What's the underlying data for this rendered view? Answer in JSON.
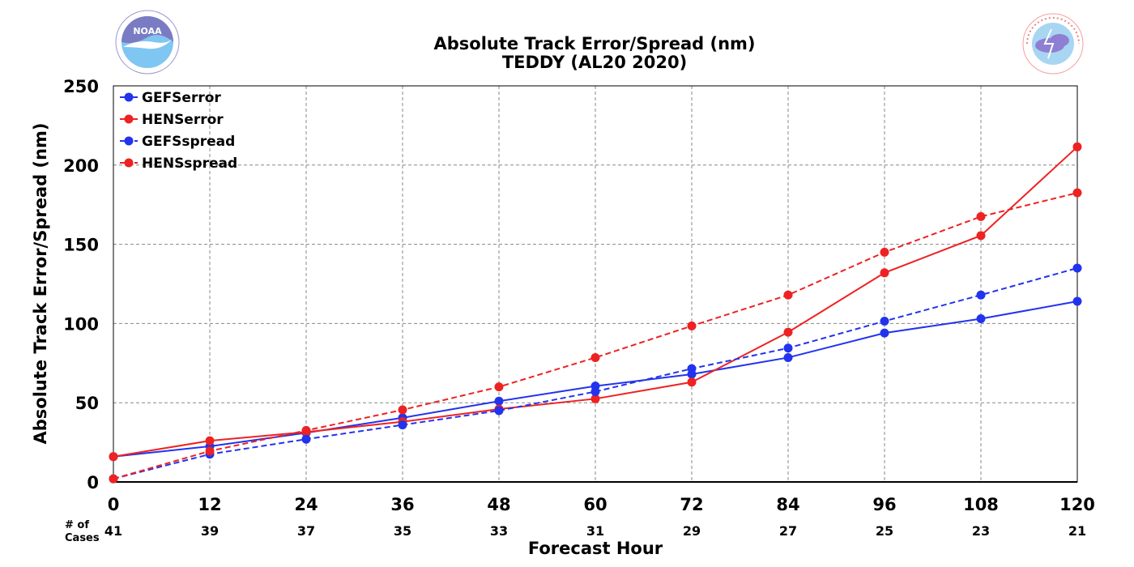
{
  "logos": {
    "left": {
      "name": "noaa-logo",
      "text": "NOAA",
      "ring_text": "NATIONAL OCEANIC AND ATMOSPHERIC ADMINISTRATION · U.S. DEPARTMENT OF COMMERCE"
    },
    "right": {
      "name": "nws-logo",
      "ring_text": "NATIONAL WEATHER SERVICE"
    }
  },
  "chart_data": {
    "type": "line",
    "title": "Absolute Track Error/Spread (nm)",
    "subtitle": "TEDDY (AL20 2020)",
    "xlabel": "Forecast Hour",
    "ylabel": "Absolute Track Error/Spread (nm)",
    "x": [
      0,
      12,
      24,
      36,
      48,
      60,
      72,
      84,
      96,
      108,
      120
    ],
    "xlim": [
      0,
      120
    ],
    "ylim": [
      0,
      250
    ],
    "yticks": [
      0,
      50,
      100,
      150,
      200,
      250
    ],
    "grid": true,
    "legend_position": "top-left",
    "cases_label": "# of\nCases",
    "cases": [
      41,
      39,
      37,
      35,
      33,
      31,
      29,
      27,
      25,
      23,
      21
    ],
    "series": [
      {
        "name": "GEFSerror",
        "color": "#2233ee",
        "dash": false,
        "values": [
          16,
          22.5,
          31,
          40.5,
          51,
          60.5,
          68,
          78.5,
          94,
          103,
          114
        ]
      },
      {
        "name": "HENSerror",
        "color": "#ee2222",
        "dash": false,
        "values": [
          16,
          26,
          31.5,
          38,
          46,
          52.5,
          63,
          94.5,
          132,
          155.5,
          211.5
        ]
      },
      {
        "name": "GEFSspread",
        "color": "#2233ee",
        "dash": true,
        "values": [
          2,
          17.5,
          27,
          36,
          45,
          57,
          71.5,
          84.5,
          101.5,
          118,
          135
        ]
      },
      {
        "name": "HENSspread",
        "color": "#ee2222",
        "dash": true,
        "values": [
          2,
          19.5,
          32.5,
          45.5,
          60,
          78.5,
          98.5,
          118,
          145,
          167.5,
          182.5
        ]
      }
    ]
  }
}
